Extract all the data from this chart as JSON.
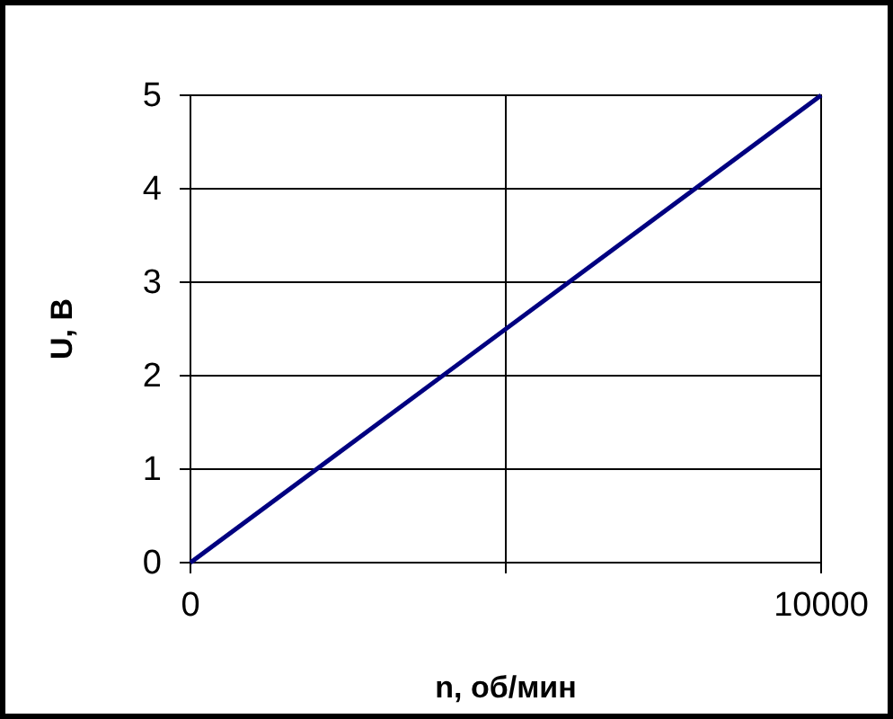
{
  "chart_data": {
    "type": "line",
    "xlabel": "n, об/мин",
    "ylabel": "U, B",
    "x": [
      0,
      10000
    ],
    "series": [
      {
        "color": "#000080",
        "values": [
          0,
          5
        ]
      }
    ],
    "xlim": [
      0,
      10000
    ],
    "ylim": [
      0,
      5
    ],
    "xticks": [
      0,
      {
        "value": 5000,
        "label": null
      },
      10000
    ],
    "yticks": [
      0,
      1,
      2,
      3,
      4,
      5
    ],
    "grid": true,
    "marker": "none",
    "line_style": "solid"
  }
}
